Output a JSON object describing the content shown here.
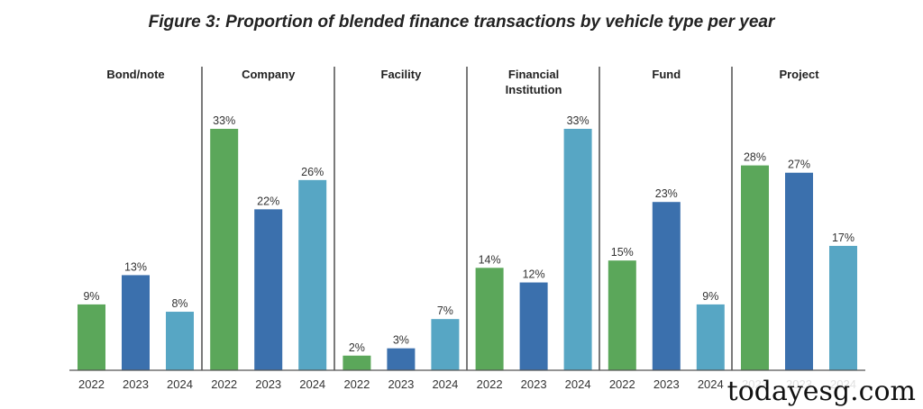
{
  "chart_data": {
    "type": "bar",
    "title": "Figure 3: Proportion of blended finance transactions by vehicle type per year",
    "xlabel": "",
    "ylabel": "",
    "ylim": [
      0,
      35
    ],
    "grid": false,
    "series_colors": {
      "2022": "#5ba75a",
      "2023": "#3b70ad",
      "2024": "#57a6c4"
    },
    "panels": [
      {
        "name": "Bond/note",
        "categories": [
          "2022",
          "2023",
          "2024"
        ],
        "values": [
          9,
          13,
          8
        ],
        "labels": [
          "9%",
          "13%",
          "8%"
        ]
      },
      {
        "name": "Company",
        "categories": [
          "2022",
          "2023",
          "2024"
        ],
        "values": [
          33,
          22,
          26
        ],
        "labels": [
          "33%",
          "22%",
          "26%"
        ]
      },
      {
        "name": "Facility",
        "categories": [
          "2022",
          "2023",
          "2024"
        ],
        "values": [
          2,
          3,
          7
        ],
        "labels": [
          "2%",
          "3%",
          "7%"
        ]
      },
      {
        "name": "Financial Institution",
        "title_lines": [
          "Financial",
          "Institution"
        ],
        "categories": [
          "2022",
          "2023",
          "2024"
        ],
        "values": [
          14,
          12,
          33
        ],
        "labels": [
          "14%",
          "12%",
          "33%"
        ]
      },
      {
        "name": "Fund",
        "categories": [
          "2022",
          "2023",
          "2024"
        ],
        "values": [
          15,
          23,
          9
        ],
        "labels": [
          "15%",
          "23%",
          "9%"
        ]
      },
      {
        "name": "Project",
        "categories": [
          "2022",
          "2023",
          "2024"
        ],
        "values": [
          28,
          27,
          17
        ],
        "labels": [
          "28%",
          "27%",
          "17%"
        ]
      }
    ]
  },
  "watermark": "todayesg.com"
}
